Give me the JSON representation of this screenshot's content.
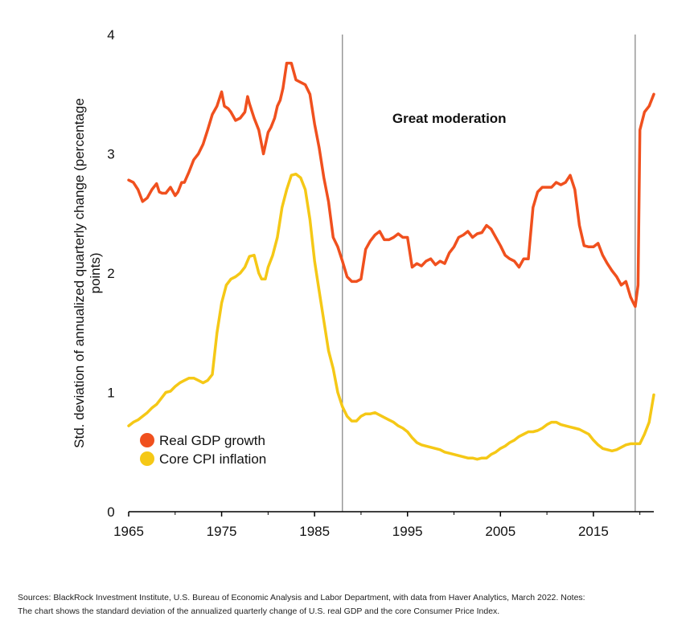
{
  "chart_data": {
    "type": "line",
    "ylabel_lines": [
      "Std. deviation of annualized quarterly change (percentage",
      "points)"
    ],
    "xlim": [
      1965,
      2021.5
    ],
    "ylim": [
      0,
      4
    ],
    "x_ticks": [
      1965,
      1975,
      1985,
      1995,
      2005,
      2015
    ],
    "x_tick_labels": [
      "1965",
      "1975",
      "1985",
      "1995",
      "2005",
      "2015"
    ],
    "y_ticks": [
      0,
      1,
      2,
      3,
      4
    ],
    "y_tick_labels": [
      "0",
      "1",
      "2",
      "3",
      "4"
    ],
    "grid": false,
    "legend_position": "bottom-left",
    "vertical_lines": [
      1988,
      2019.5
    ],
    "annotation": {
      "text": "Great moderation",
      "x": 1999.5,
      "y": 3.3
    },
    "series": [
      {
        "name": "Real GDP growth",
        "color": "#f0501e",
        "x": [
          1965,
          1965.5,
          1966,
          1966.5,
          1967,
          1967.5,
          1968,
          1968.3,
          1968.6,
          1969,
          1969.5,
          1970,
          1970.3,
          1970.7,
          1971,
          1971.5,
          1972,
          1972.5,
          1973,
          1973.5,
          1974,
          1974.5,
          1975,
          1975.3,
          1975.7,
          1976,
          1976.5,
          1977,
          1977.5,
          1977.8,
          1978,
          1978.5,
          1979,
          1979.5,
          1980,
          1980.3,
          1980.7,
          1981,
          1981.3,
          1981.6,
          1982,
          1982.5,
          1983,
          1983.5,
          1984,
          1984.5,
          1985,
          1985.5,
          1986,
          1986.5,
          1987,
          1987.5,
          1988,
          1988.5,
          1989,
          1989.5,
          1990,
          1990.5,
          1991,
          1991.5,
          1992,
          1992.5,
          1993,
          1993.5,
          1994,
          1994.5,
          1995,
          1995.5,
          1996,
          1996.5,
          1997,
          1997.5,
          1998,
          1998.5,
          1999,
          1999.5,
          2000,
          2000.5,
          2001,
          2001.5,
          2002,
          2002.5,
          2003,
          2003.5,
          2004,
          2004.5,
          2005,
          2005.5,
          2006,
          2006.5,
          2007,
          2007.5,
          2008,
          2008.5,
          2009,
          2009.5,
          2010,
          2010.5,
          2011,
          2011.5,
          2012,
          2012.5,
          2013,
          2013.5,
          2014,
          2014.5,
          2015,
          2015.5,
          2016,
          2016.5,
          2017,
          2017.5,
          2018,
          2018.5,
          2019,
          2019.3,
          2019.5,
          2019.8,
          2020,
          2020.5,
          2021,
          2021.5
        ],
        "values": [
          2.78,
          2.76,
          2.7,
          2.6,
          2.63,
          2.7,
          2.75,
          2.68,
          2.67,
          2.67,
          2.72,
          2.65,
          2.68,
          2.76,
          2.76,
          2.85,
          2.95,
          3.0,
          3.08,
          3.2,
          3.33,
          3.4,
          3.52,
          3.4,
          3.38,
          3.35,
          3.28,
          3.3,
          3.35,
          3.48,
          3.42,
          3.3,
          3.2,
          3.0,
          3.18,
          3.22,
          3.3,
          3.4,
          3.45,
          3.55,
          3.76,
          3.76,
          3.62,
          3.6,
          3.58,
          3.5,
          3.25,
          3.05,
          2.8,
          2.6,
          2.3,
          2.22,
          2.1,
          1.97,
          1.93,
          1.93,
          1.95,
          2.2,
          2.27,
          2.32,
          2.35,
          2.28,
          2.28,
          2.3,
          2.33,
          2.3,
          2.3,
          2.05,
          2.08,
          2.06,
          2.1,
          2.12,
          2.07,
          2.1,
          2.08,
          2.17,
          2.22,
          2.3,
          2.32,
          2.35,
          2.3,
          2.33,
          2.34,
          2.4,
          2.37,
          2.3,
          2.23,
          2.15,
          2.12,
          2.1,
          2.05,
          2.12,
          2.12,
          2.55,
          2.68,
          2.72,
          2.72,
          2.72,
          2.76,
          2.74,
          2.76,
          2.82,
          2.7,
          2.4,
          2.23,
          2.22,
          2.22,
          2.25,
          2.15,
          2.08,
          2.02,
          1.97,
          1.9,
          1.93,
          1.8,
          1.75,
          1.72,
          1.9,
          3.2,
          3.35,
          3.4,
          3.5
        ]
      },
      {
        "name": "Core CPI inflation",
        "color": "#f5c816",
        "x": [
          1965,
          1965.5,
          1966,
          1966.5,
          1967,
          1967.5,
          1968,
          1968.5,
          1969,
          1969.5,
          1970,
          1970.5,
          1971,
          1971.5,
          1972,
          1972.5,
          1973,
          1973.5,
          1974,
          1974.5,
          1975,
          1975.5,
          1976,
          1976.5,
          1977,
          1977.5,
          1978,
          1978.5,
          1979,
          1979.3,
          1979.7,
          1980,
          1980.5,
          1981,
          1981.5,
          1982,
          1982.5,
          1983,
          1983.5,
          1984,
          1984.5,
          1985,
          1985.5,
          1986,
          1986.5,
          1987,
          1987.5,
          1988,
          1988.5,
          1989,
          1989.5,
          1990,
          1990.5,
          1991,
          1991.5,
          1992,
          1992.5,
          1993,
          1993.5,
          1994,
          1994.5,
          1995,
          1995.5,
          1996,
          1996.5,
          1997,
          1997.5,
          1998,
          1998.5,
          1999,
          1999.5,
          2000,
          2000.5,
          2001,
          2001.5,
          2002,
          2002.5,
          2003,
          2003.5,
          2004,
          2004.5,
          2005,
          2005.5,
          2006,
          2006.5,
          2007,
          2007.5,
          2008,
          2008.5,
          2009,
          2009.5,
          2010,
          2010.5,
          2011,
          2011.5,
          2012,
          2012.5,
          2013,
          2013.5,
          2014,
          2014.5,
          2015,
          2015.5,
          2016,
          2016.5,
          2017,
          2017.5,
          2018,
          2018.5,
          2019,
          2019.5,
          2020,
          2020.5,
          2021,
          2021.5
        ],
        "values": [
          0.72,
          0.75,
          0.77,
          0.8,
          0.83,
          0.87,
          0.9,
          0.95,
          1.0,
          1.01,
          1.05,
          1.08,
          1.1,
          1.12,
          1.12,
          1.1,
          1.08,
          1.1,
          1.15,
          1.5,
          1.75,
          1.9,
          1.95,
          1.97,
          2.0,
          2.05,
          2.14,
          2.15,
          2.0,
          1.95,
          1.95,
          2.05,
          2.15,
          2.3,
          2.55,
          2.7,
          2.82,
          2.83,
          2.8,
          2.7,
          2.45,
          2.1,
          1.85,
          1.6,
          1.35,
          1.2,
          1.0,
          0.88,
          0.8,
          0.76,
          0.76,
          0.8,
          0.82,
          0.82,
          0.83,
          0.81,
          0.79,
          0.77,
          0.75,
          0.72,
          0.7,
          0.67,
          0.62,
          0.58,
          0.56,
          0.55,
          0.54,
          0.53,
          0.52,
          0.5,
          0.49,
          0.48,
          0.47,
          0.46,
          0.45,
          0.45,
          0.44,
          0.45,
          0.45,
          0.48,
          0.5,
          0.53,
          0.55,
          0.58,
          0.6,
          0.63,
          0.65,
          0.67,
          0.67,
          0.68,
          0.7,
          0.73,
          0.75,
          0.75,
          0.73,
          0.72,
          0.71,
          0.7,
          0.69,
          0.67,
          0.65,
          0.6,
          0.56,
          0.53,
          0.52,
          0.51,
          0.52,
          0.54,
          0.56,
          0.57,
          0.57,
          0.57,
          0.65,
          0.75,
          0.98
        ]
      }
    ]
  },
  "notes": {
    "line1": "Sources: BlackRock Investment Institute, U.S. Bureau of Economic Analysis and Labor Department, with data from Haver Analytics, March 2022. Notes:",
    "line2": "The chart shows the standard deviation of the annualized quarterly change of U.S. real GDP and the core Consumer Price Index."
  }
}
